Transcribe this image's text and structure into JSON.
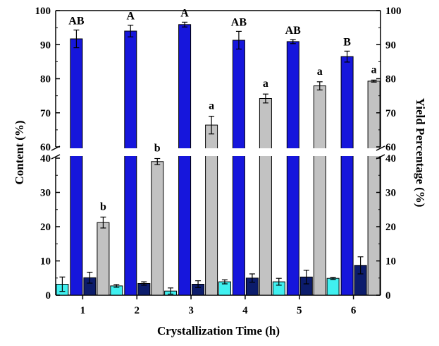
{
  "chart_data": {
    "type": "bar",
    "xlabel": "Crystallization Time (h)",
    "ylabel_left": "Content (%)",
    "ylabel_right": "Yield Percentage (%)",
    "categories": [
      "1",
      "2",
      "3",
      "4",
      "5",
      "6"
    ],
    "y_axis": {
      "broken": true,
      "lower_range": [
        0,
        40
      ],
      "upper_range": [
        60,
        100
      ],
      "lower_ticks": [
        "0",
        "10",
        "20",
        "30",
        "40"
      ],
      "upper_ticks": [
        "60",
        "70",
        "80",
        "90",
        "100"
      ]
    },
    "colors": {
      "cyan": "#40f0f0",
      "blue": "#1616dc",
      "navy": "#0c1c6c",
      "gray": "#c2c2c2"
    },
    "series": [
      {
        "color": "cyan",
        "values": [
          3.2,
          2.7,
          1.2,
          3.9,
          3.9,
          4.9
        ],
        "errors": [
          2.1,
          0.4,
          0.9,
          0.6,
          1.0,
          0.3
        ]
      },
      {
        "color": "blue",
        "values": [
          91.7,
          94.0,
          95.9,
          91.3,
          90.9,
          86.5
        ],
        "errors": [
          2.6,
          1.7,
          0.7,
          2.6,
          0.6,
          1.6
        ]
      },
      {
        "color": "navy",
        "values": [
          5.1,
          3.4,
          3.2,
          5.0,
          5.3,
          8.7
        ],
        "errors": [
          1.6,
          0.5,
          1.0,
          1.2,
          2.0,
          2.5
        ]
      },
      {
        "color": "gray",
        "values": [
          21.2,
          39.0,
          66.4,
          74.2,
          77.9,
          79.3
        ],
        "errors": [
          1.6,
          0.9,
          2.6,
          1.3,
          1.2,
          0.3
        ]
      }
    ],
    "letters_blue": [
      "AB",
      "A",
      "A",
      "AB",
      "AB",
      "B"
    ],
    "letters_gray": [
      "b",
      "b",
      "a",
      "a",
      "a",
      "a"
    ],
    "legend": "none",
    "grid": false
  }
}
